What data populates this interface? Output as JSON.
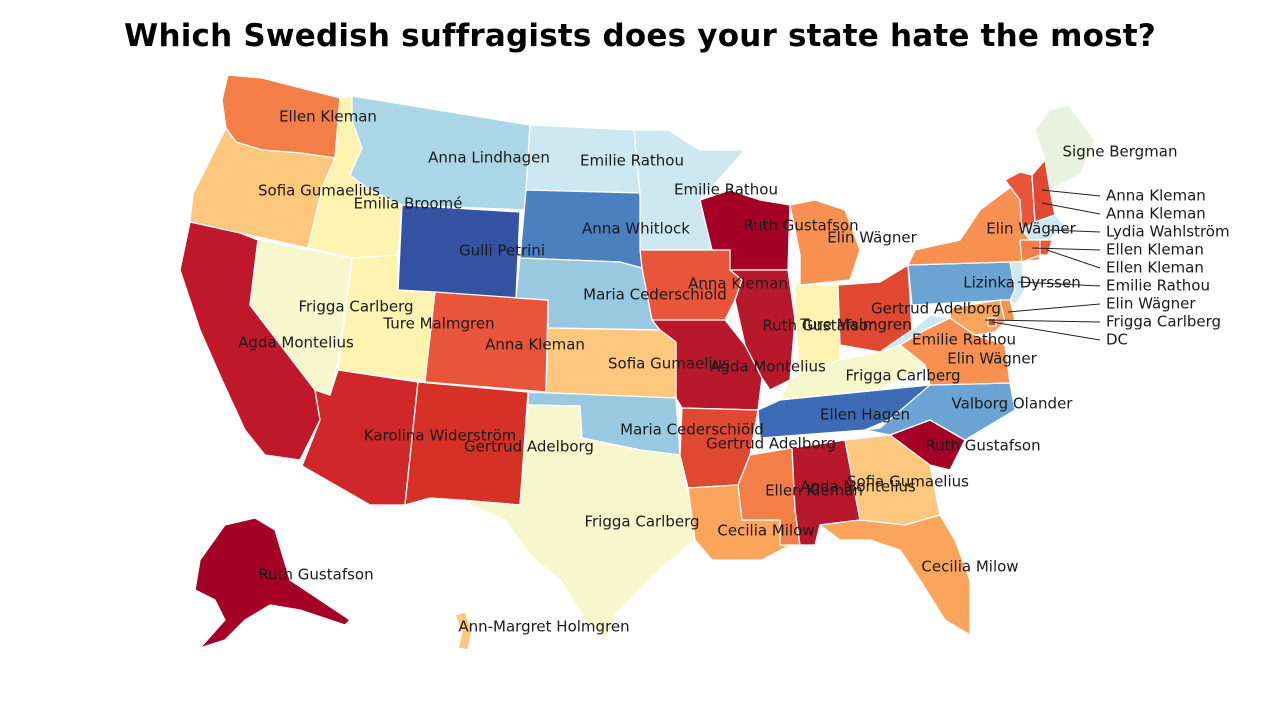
{
  "title": "Which Swedish suffragists does your state hate the most?",
  "palette": {
    "dark_red": "#a50026",
    "red": "#d73027",
    "red_orange": "#e8553b",
    "orange": "#f47e47",
    "light_orange": "#fba55c",
    "peach": "#fdc77d",
    "pale_yellow": "#fef3b0",
    "cream": "#f7f7cd",
    "pale_green": "#e7f3de",
    "pale_blue": "#cde8f0",
    "light_blue": "#abd6e8",
    "sky_blue": "#99c9e0",
    "mid_blue": "#6ba4d3",
    "blue": "#4a7fc0",
    "dark_blue": "#3653a3",
    "border": "#ffffff"
  },
  "states": [
    {
      "id": "WA",
      "name": "Ellen Kleman",
      "color": "#f47e47"
    },
    {
      "id": "OR",
      "name": "Sofia Gumaelius",
      "color": "#fdc77d"
    },
    {
      "id": "CA",
      "name": "Agda Montelius",
      "color": "#c0182b"
    },
    {
      "id": "NV",
      "name": "",
      "color": "#f7f7cd"
    },
    {
      "id": "ID",
      "name": "Emilia Broomé",
      "color": "#fef3b0"
    },
    {
      "id": "MT",
      "name": "Anna Lindhagen",
      "color": "#abd6e8"
    },
    {
      "id": "WY",
      "name": "Gulli Petrini",
      "color": "#3653a3"
    },
    {
      "id": "UT",
      "name": "Frigga Carlberg",
      "color": "#fef3b0"
    },
    {
      "id": "AZ",
      "name": "Karolina Widerström",
      "color": "#d0282a"
    },
    {
      "id": "CO",
      "name": "Anna Kleman",
      "color": "#e8553b"
    },
    {
      "id": "NM",
      "name": "Gertrud Adelborg",
      "color": "#d73027"
    },
    {
      "id": "ND",
      "name": "Emilie Rathou",
      "color": "#cde8f0"
    },
    {
      "id": "SD",
      "name": "Anna Whitlock",
      "color": "#4a7fc0"
    },
    {
      "id": "NE",
      "name": "Maria Cederschiöld",
      "color": "#99c9e0"
    },
    {
      "id": "KS",
      "name": "Sofia Gumaelius",
      "color": "#fdc77d"
    },
    {
      "id": "OK",
      "name": "Maria Cederschiöld",
      "color": "#99c9e0"
    },
    {
      "id": "TX",
      "name": "Frigga Carlberg",
      "color": "#f7f7cd"
    },
    {
      "id": "MN",
      "name": "Emilie Rathou",
      "color": "#cde8f0"
    },
    {
      "id": "IA",
      "name": "Anna Kleman",
      "color": "#e8553b"
    },
    {
      "id": "MO",
      "name": "Agda Montelius",
      "color": "#b7182b"
    },
    {
      "id": "AR",
      "name": "Gertrud Adelborg",
      "color": "#e04832"
    },
    {
      "id": "LA",
      "name": "Cecilia Milow",
      "color": "#fba55c"
    },
    {
      "id": "WI",
      "name": "Ruth Gustafson",
      "color": "#a50026"
    },
    {
      "id": "IL",
      "name": "Ruth Gustafson",
      "color": "#b7182b"
    },
    {
      "id": "MI",
      "name": "Elin Wägner",
      "color": "#f79050"
    },
    {
      "id": "IN",
      "name": "Ture Malmgren",
      "color": "#fef3b0"
    },
    {
      "id": "OH",
      "name": "Gertrud Adelborg",
      "color": "#e04832"
    },
    {
      "id": "KY",
      "name": "Frigga Carlberg",
      "color": "#f7f7cd"
    },
    {
      "id": "TN",
      "name": "Ellen Hagen",
      "color": "#3e6bb5"
    },
    {
      "id": "MS",
      "name": "Ellen Kleman",
      "color": "#f47e47"
    },
    {
      "id": "AL",
      "name": "Agda Montelius",
      "color": "#b7182b"
    },
    {
      "id": "GA",
      "name": "Sofia Gumaelius",
      "color": "#fdc77d"
    },
    {
      "id": "FL",
      "name": "Cecilia Milow",
      "color": "#fba55c"
    },
    {
      "id": "SC",
      "name": "Ruth Gustafson",
      "color": "#a50026"
    },
    {
      "id": "NC",
      "name": "Valborg Olander",
      "color": "#6ba4d3"
    },
    {
      "id": "VA",
      "name": "Elin Wägner",
      "color": "#f79050"
    },
    {
      "id": "WV",
      "name": "Emilie Rathou",
      "color": "#cde8f0"
    },
    {
      "id": "PA",
      "name": "Lizinka Dyrssen",
      "color": "#6ba4d3"
    },
    {
      "id": "NY",
      "name": "Elin Wägner",
      "color": "#f79050"
    },
    {
      "id": "ME",
      "name": "Signe Bergman",
      "color": "#e7f3de"
    },
    {
      "id": "VT",
      "name": "Anna Kleman",
      "color": "#e8553b"
    },
    {
      "id": "NH",
      "name": "Anna Kleman",
      "color": "#e04832"
    },
    {
      "id": "MA",
      "name": "Lydia Wahlström",
      "color": "#cde8f0"
    },
    {
      "id": "CT",
      "name": "Ellen Kleman",
      "color": "#f47e47"
    },
    {
      "id": "RI",
      "name": "Ellen Kleman",
      "color": "#e8553b"
    },
    {
      "id": "NJ",
      "name": "Emilie Rathou",
      "color": "#cde8f0"
    },
    {
      "id": "DE",
      "name": "Elin Wägner",
      "color": "#f79050"
    },
    {
      "id": "MD",
      "name": "Frigga Carlberg",
      "color": "#fba55c"
    },
    {
      "id": "DC",
      "name": "DC",
      "color": "#e04832"
    },
    {
      "id": "AK",
      "name": "Ruth Gustafson",
      "color": "#a50026"
    },
    {
      "id": "HI",
      "name": "Ann-Margret Holmgren",
      "color": "#fdc77d"
    }
  ],
  "labels": [
    {
      "text": "Ellen Kleman"
    },
    {
      "text": "Sofia Gumaelius"
    },
    {
      "text": "Emilia Broomé"
    },
    {
      "text": "Agda Montelius"
    },
    {
      "text": "Frigga Carlberg"
    },
    {
      "text": "Ture Malmgren"
    },
    {
      "text": "Anna Lindhagen"
    },
    {
      "text": "Gulli Petrini"
    },
    {
      "text": "Karolina Widerström"
    },
    {
      "text": "Gertrud Adelborg"
    },
    {
      "text": "Anna Kleman"
    },
    {
      "text": "Emilie Rathou"
    },
    {
      "text": "Anna Whitlock"
    },
    {
      "text": "Maria Cederschiöld"
    },
    {
      "text": "Sofia Gumaelius"
    },
    {
      "text": "Maria Cederschiöld"
    },
    {
      "text": "Frigga Carlberg"
    },
    {
      "text": "Emilie Rathou"
    },
    {
      "text": "Anna Kleman"
    },
    {
      "text": "Agda Montelius"
    },
    {
      "text": "Gertrud Adelborg"
    },
    {
      "text": "Cecilia Milow"
    },
    {
      "text": "Ruth Gustafson"
    },
    {
      "text": "Ruth Gustafson"
    },
    {
      "text": "Ture Malmgren"
    },
    {
      "text": "Elin Wägner"
    },
    {
      "text": "Gertrud Adelborg"
    },
    {
      "text": "Frigga Carlberg"
    },
    {
      "text": "Ellen Hagen"
    },
    {
      "text": "Ellen Kleman"
    },
    {
      "text": "Agda Montelius"
    },
    {
      "text": "Sofia Gumaelius"
    },
    {
      "text": "Cecilia Milow"
    },
    {
      "text": "Ruth Gustafson"
    },
    {
      "text": "Valborg Olander"
    },
    {
      "text": "Elin Wägner"
    },
    {
      "text": "Emilie Rathou"
    },
    {
      "text": "Lizinka Dyrssen"
    },
    {
      "text": "Elin Wägner"
    },
    {
      "text": "Signe Bergman"
    },
    {
      "text": "Ruth Gustafson"
    },
    {
      "text": "Ann-Margret Holmgren"
    }
  ],
  "callouts": [
    {
      "text": "Anna Kleman"
    },
    {
      "text": "Anna Kleman"
    },
    {
      "text": "Lydia Wahlström"
    },
    {
      "text": "Ellen Kleman"
    },
    {
      "text": "Ellen Kleman"
    },
    {
      "text": "Emilie Rathou"
    },
    {
      "text": "Elin Wägner"
    },
    {
      "text": "Frigga Carlberg"
    },
    {
      "text": "DC"
    }
  ]
}
